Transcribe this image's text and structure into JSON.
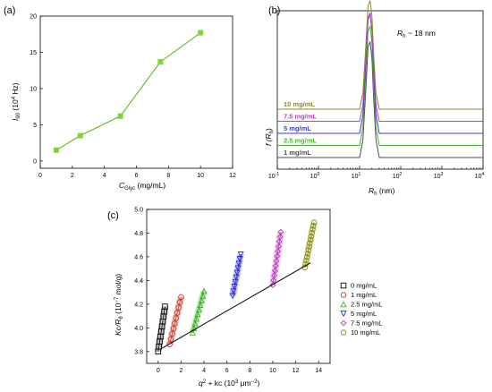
{
  "colors": {
    "axis": "#000000"
  },
  "panels": [
    {
      "label": "(a)",
      "type": "line",
      "xlabel": "C",
      "xlabel_sub": "Glyc",
      "xlabel_unit": " (mg/mL)",
      "ylabel": "I",
      "ylabel_sub": "90",
      "ylabel_mid": " (10",
      "ylabel_sup": "4",
      "ylabel_unit": " Hz)",
      "xlim": [
        0,
        12
      ],
      "ylim": [
        -1,
        20
      ],
      "xticks": [
        "0",
        "2",
        "4",
        "6",
        "8",
        "10",
        "12"
      ],
      "yticks": [
        "0",
        "5",
        "10",
        "15",
        "20"
      ],
      "color": "#6dbf2a",
      "marker_color": "#7bd53c",
      "x": [
        1,
        2.5,
        5,
        7.5,
        10
      ],
      "y": [
        1.5,
        3.5,
        6.2,
        13.7,
        17.7
      ]
    },
    {
      "label": "(b)",
      "type": "line",
      "xscale": "log",
      "xlabel": "R",
      "xlabel_sub": "h",
      "xlabel_unit": " (nm)",
      "ylabel": "f (R",
      "ylabel_sub": "h",
      "ylabel_unit": ")",
      "annotation": "R",
      "annotation_sub": "h",
      "annotation_unit": " ~ 18 nm",
      "xlim": [
        0.1,
        10000
      ],
      "xticks": [
        "10",
        "10",
        "10",
        "10",
        "10",
        "10"
      ],
      "xtick_exponents": [
        "-1",
        "0",
        "1",
        "2",
        "3",
        "4"
      ],
      "series": [
        {
          "name": "1 mg/mL",
          "color": "#4d4d4d",
          "baseline": 0,
          "peak": 3.2
        },
        {
          "name": "2.5 mg/mL",
          "color": "#4fb33c",
          "baseline": 1,
          "peak": 3.3
        },
        {
          "name": "5 mg/mL",
          "color": "#3a3ad6",
          "baseline": 2,
          "peak": 3.3
        },
        {
          "name": "7.5 mg/mL",
          "color": "#c040c0",
          "baseline": 3,
          "peak": 3.0
        },
        {
          "name": "10 mg/mL",
          "color": "#8a8a2a",
          "baseline": 4,
          "peak": 3.0
        }
      ]
    },
    {
      "label": "(c)",
      "type": "scatter",
      "xlabel": "q",
      "xlabel_sup": "2",
      "xlabel_mid": " + kc (10",
      "xlabel_sup2": "3",
      "xlabel_unit": " μm",
      "xlabel_sup3": "−2",
      "xlabel_end": ")",
      "ylabel": "Kc/R",
      "ylabel_sub": "θ",
      "ylabel_mid": " (10",
      "ylabel_sup": "−7",
      "ylabel_unit": " mol/g)",
      "xlim": [
        -1,
        15
      ],
      "ylim": [
        3.7,
        5.0
      ],
      "xticks": [
        "0",
        "2",
        "4",
        "6",
        "8",
        "10",
        "12",
        "14"
      ],
      "yticks": [
        "3.8",
        "4.0",
        "4.2",
        "4.4",
        "4.6",
        "4.8",
        "5.0"
      ],
      "legend_position": "right",
      "extrapolation_line": {
        "x": [
          0.2,
          13.3
        ],
        "y": [
          3.82,
          4.55
        ]
      },
      "series": [
        {
          "name": "0 mg/mL",
          "marker": "square",
          "color": "#000000",
          "band": "#aaaaaa",
          "x": [
            0,
            0.6
          ],
          "y": [
            3.8,
            4.18
          ],
          "n": 10
        },
        {
          "name": "1 mg/mL",
          "marker": "circle",
          "color": "#c0392b",
          "band": "#f0b0a0",
          "x": [
            1.0,
            2.0
          ],
          "y": [
            3.86,
            4.26
          ],
          "n": 10
        },
        {
          "name": "2.5 mg/mL",
          "marker": "triangle",
          "color": "#3fae2a",
          "band": "#b0e8a0",
          "x": [
            3.0,
            4.0
          ],
          "y": [
            3.96,
            4.31
          ],
          "n": 10
        },
        {
          "name": "5 mg/mL",
          "marker": "triangle-down",
          "color": "#2a2ad0",
          "band": "#b0b0f0",
          "x": [
            6.5,
            7.2
          ],
          "y": [
            4.27,
            4.62
          ],
          "n": 10
        },
        {
          "name": "7.5 mg/mL",
          "marker": "diamond",
          "color": "#b03ab0",
          "band": "#f0b0f0",
          "x": [
            10.0,
            10.7
          ],
          "y": [
            4.36,
            4.81
          ],
          "n": 12
        },
        {
          "name": "10 mg/mL",
          "marker": "circle",
          "color": "#8a8a20",
          "band": "#e6e6a0",
          "x": [
            12.8,
            13.6
          ],
          "y": [
            4.51,
            4.89
          ],
          "n": 14
        }
      ]
    }
  ]
}
